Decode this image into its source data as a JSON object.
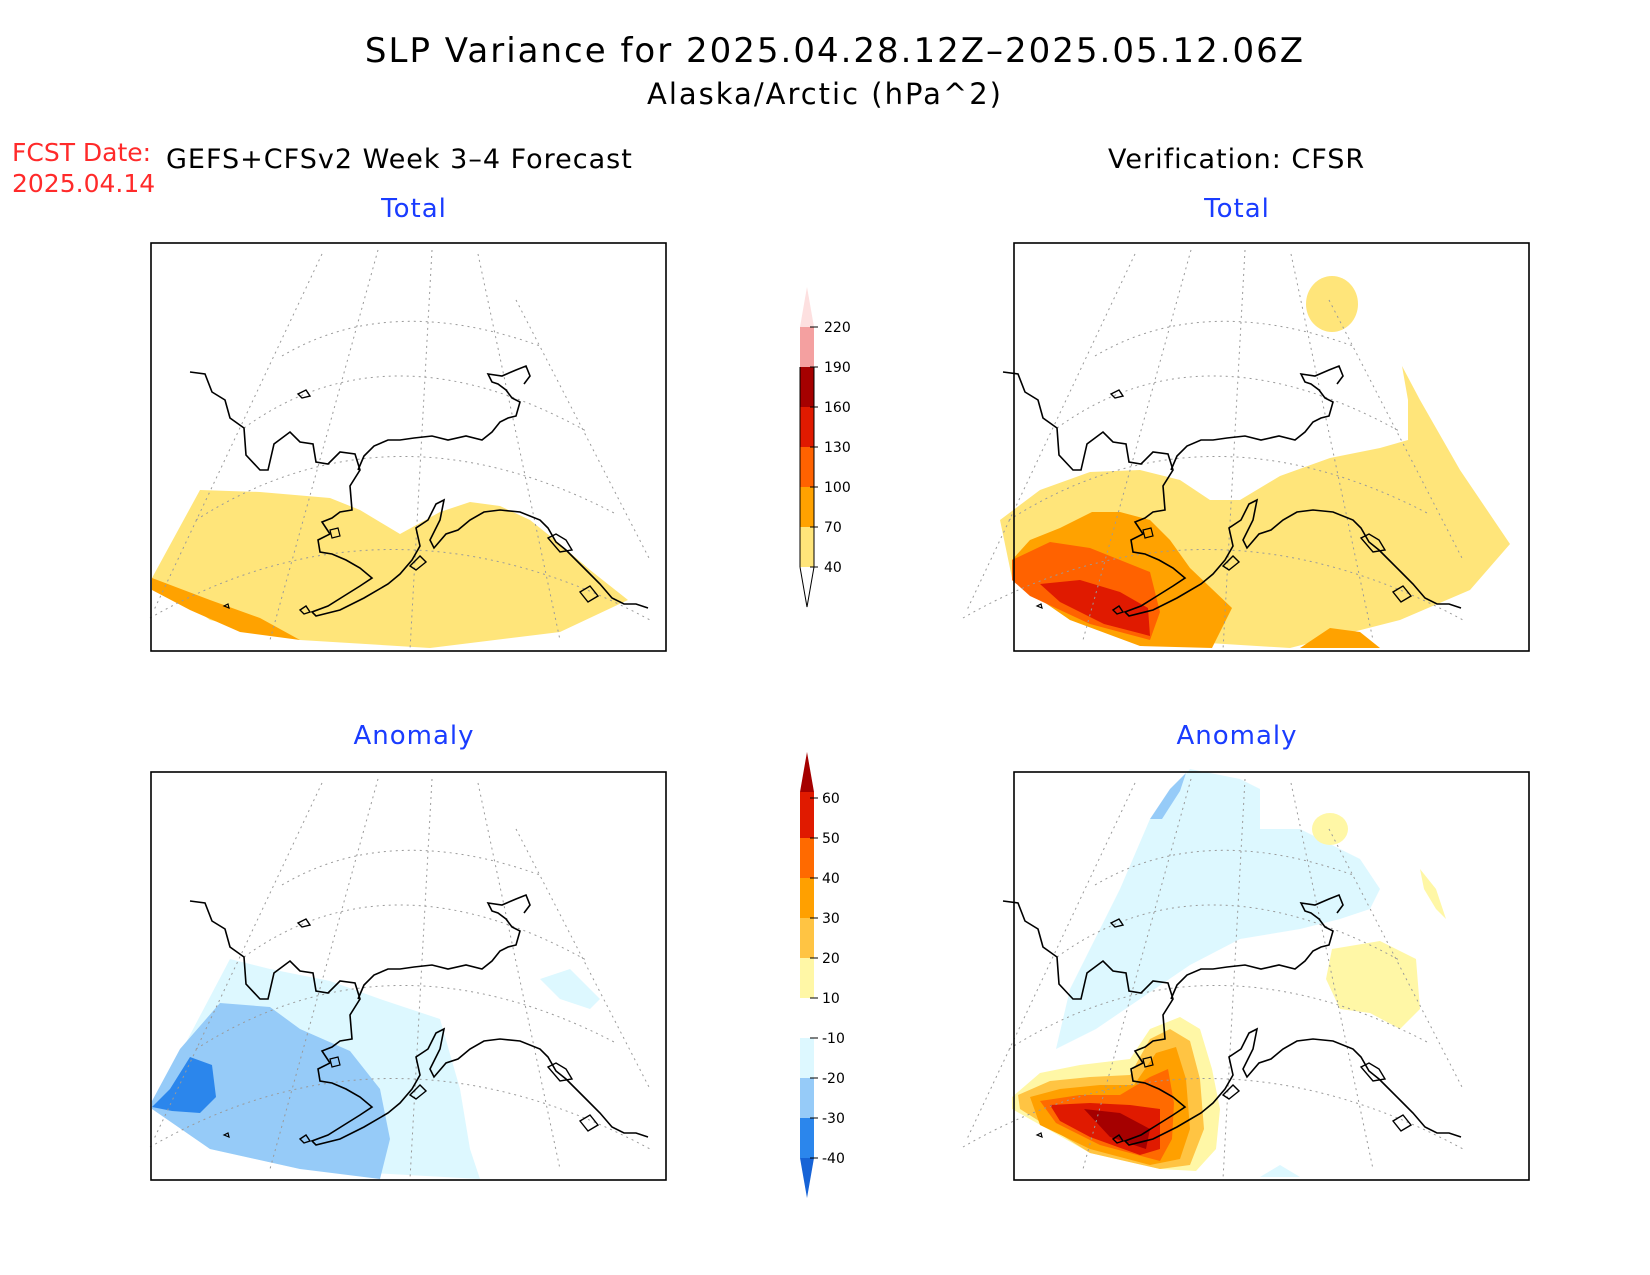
{
  "title": "SLP Variance for 2025.04.28.12Z–2025.05.12.06Z",
  "subtitle": "Alaska/Arctic (hPa^2)",
  "fcst_label": "FCST Date:",
  "fcst_date": "2025.04.14",
  "left_header": "GEFS+CFSv2 Week 3–4 Forecast",
  "right_header": "Verification: CFSR",
  "panels": {
    "forecast_total": "Total",
    "forecast_anomaly": "Anomaly",
    "verification_total": "Total",
    "verification_anomaly": "Anomaly"
  },
  "colorbar_total": {
    "labels": [
      "40",
      "70",
      "100",
      "130",
      "160",
      "190",
      "220"
    ],
    "colors": [
      "#ffe57a",
      "#ffa200",
      "#ff6200",
      "#e01a00",
      "#a50000",
      "#f4a0a0",
      "#fde0e0"
    ]
  },
  "colorbar_anomaly": {
    "labels": [
      "-40",
      "-30",
      "-20",
      "-10",
      "10",
      "20",
      "30",
      "40",
      "50",
      "60"
    ],
    "colors": [
      "#1663d6",
      "#2b86ec",
      "#96cbf8",
      "#ddf8ff",
      "#ffffff",
      "#fff7a6",
      "#ffc443",
      "#ffa000",
      "#ff6a00",
      "#e01a00",
      "#a50000"
    ]
  }
}
